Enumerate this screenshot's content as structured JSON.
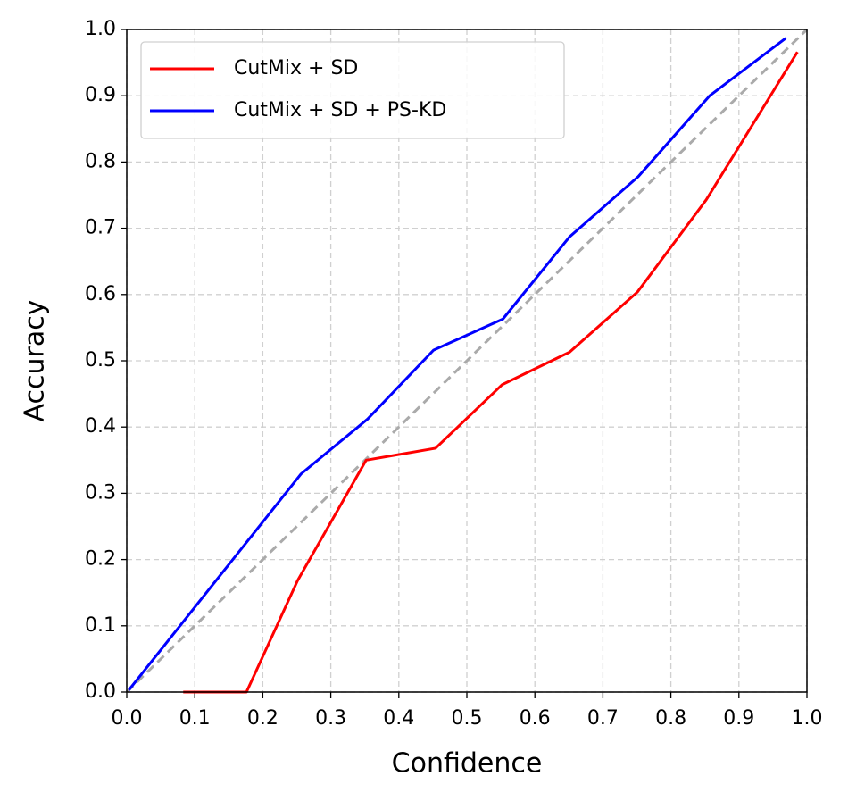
{
  "chart_data": {
    "type": "line",
    "xlabel": "Confidence",
    "ylabel": "Accuracy",
    "xlim": [
      0,
      1
    ],
    "ylim": [
      0,
      1
    ],
    "xticks": [
      {
        "value": 0,
        "label": "0.0"
      },
      0.1,
      0.2,
      0.3,
      0.4,
      0.5,
      0.6,
      0.7,
      0.8,
      0.9,
      {
        "value": 1,
        "label": "1.0"
      }
    ],
    "yticks": [
      {
        "value": 0,
        "label": "0.0"
      },
      0.1,
      0.2,
      0.3,
      0.4,
      0.5,
      0.6,
      0.7,
      0.8,
      0.9,
      {
        "value": 1,
        "label": "1.0"
      }
    ],
    "grid": true,
    "legend": "upper left",
    "series": [
      {
        "color": "#aaaaaa",
        "dashed": true,
        "x": [
          0,
          1
        ],
        "values": [
          0,
          1
        ]
      },
      {
        "name": "CutMix + SD",
        "color": "#ff0000",
        "x": [
          0.083,
          0.176,
          0.251,
          0.352,
          0.454,
          0.552,
          0.651,
          0.751,
          0.852,
          0.986
        ],
        "values": [
          0,
          0,
          0.168,
          0.35,
          0.368,
          0.464,
          0.513,
          0.604,
          0.743,
          0.966
        ]
      },
      {
        "name": "CutMix + SD + PS-KD",
        "color": "#0000ff",
        "x": [
          0.003,
          0.256,
          0.354,
          0.451,
          0.553,
          0.651,
          0.752,
          0.857,
          0.969
        ],
        "values": [
          0.003,
          0.329,
          0.412,
          0.516,
          0.563,
          0.687,
          0.778,
          0.9,
          0.987
        ]
      }
    ]
  }
}
